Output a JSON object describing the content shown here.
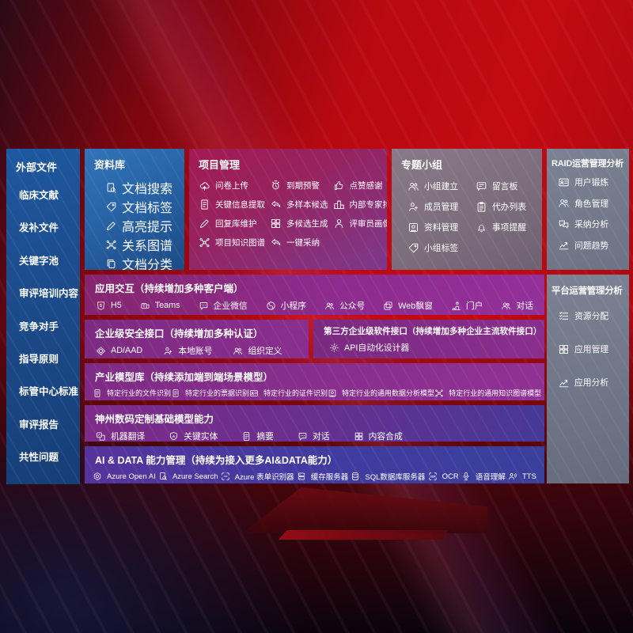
{
  "palette": {
    "background_red": "#b80911",
    "sidebar_blue": "#1c4c8c",
    "repository_blue": "#2763a6",
    "project_magenta": "#9c1d55",
    "topics_mauve": "#7b6c7c",
    "ops_gray_blue": "#6f7687",
    "row_purple": "#842b86",
    "row_indigo": "#3d3c96",
    "text": "#ffffff"
  },
  "sidebar": {
    "title": "外部文件",
    "items": [
      "临床文献",
      "发补文件",
      "关键字池",
      "审评培训内容",
      "竞争对手",
      "指导原则",
      "标管中心标准",
      "审评报告",
      "共性问题"
    ]
  },
  "repository": {
    "title": "资料库",
    "items": [
      {
        "label": "文档搜索",
        "icon": "doc-search-icon"
      },
      {
        "label": "文档标签",
        "icon": "doc-tag-icon"
      },
      {
        "label": "高亮提示",
        "icon": "highlight-icon"
      },
      {
        "label": "关系图谱",
        "icon": "relation-graph-icon"
      },
      {
        "label": "文档分类",
        "icon": "doc-classify-icon"
      }
    ]
  },
  "project_management": {
    "title": "项目管理",
    "items": [
      {
        "label": "问卷上传",
        "icon": "questionnaire-upload-icon"
      },
      {
        "label": "到期预警",
        "icon": "due-warning-icon"
      },
      {
        "label": "点赞感谢",
        "icon": "like-thanks-icon"
      },
      {
        "label": "关键信息提取",
        "icon": "key-info-extraction-icon"
      },
      {
        "label": "多样本候选",
        "icon": "multi-sample-candidate-icon"
      },
      {
        "label": "内部专家排名",
        "icon": "internal-expert-ranking-icon"
      },
      {
        "label": "回复库维护",
        "icon": "reply-library-icon"
      },
      {
        "label": "多候选生成",
        "icon": "multi-candidate-generation-icon"
      },
      {
        "label": "评审员画像",
        "icon": "reviewer-profile-icon"
      },
      {
        "label": "项目知识图谱",
        "icon": "project-knowledge-graph-icon"
      },
      {
        "label": "一键采纳",
        "icon": "one-click-adopt-icon"
      }
    ]
  },
  "topic_groups": {
    "title": "专题小组",
    "items": [
      {
        "label": "小组建立",
        "icon": "group-create-icon"
      },
      {
        "label": "留言板",
        "icon": "message-board-icon"
      },
      {
        "label": "成员管理",
        "icon": "member-management-icon"
      },
      {
        "label": "代办列表",
        "icon": "todo-list-icon"
      },
      {
        "label": "资料管理",
        "icon": "material-management-icon"
      },
      {
        "label": "事项提醒",
        "icon": "reminder-icon"
      },
      {
        "label": "小组标签",
        "icon": "group-tag-icon"
      }
    ]
  },
  "raid_ops": {
    "title": "RAID运营管理分析",
    "items": [
      {
        "label": "用户锻炼",
        "icon": "user-training-icon"
      },
      {
        "label": "角色管理",
        "icon": "role-management-icon"
      },
      {
        "label": "采纳分析",
        "icon": "adoption-analysis-icon"
      },
      {
        "label": "问题趋势",
        "icon": "issue-trend-icon"
      }
    ]
  },
  "platform_ops": {
    "title": "平台运营管理分析",
    "items": [
      {
        "label": "资源分配",
        "icon": "resource-allocation-icon"
      },
      {
        "label": "应用管理",
        "icon": "app-management-icon"
      },
      {
        "label": "应用分析",
        "icon": "app-analysis-icon"
      }
    ]
  },
  "app_interaction": {
    "title": "应用交互（持续增加多种客户端）",
    "items": [
      {
        "label": "H5",
        "icon": "h5-icon"
      },
      {
        "label": "Teams",
        "icon": "teams-icon"
      },
      {
        "label": "企业微信",
        "icon": "wecom-icon"
      },
      {
        "label": "小程序",
        "icon": "miniprogram-icon"
      },
      {
        "label": "公众号",
        "icon": "official-account-icon"
      },
      {
        "label": "Web飘窗",
        "icon": "web-popup-icon"
      },
      {
        "label": "门户",
        "icon": "portal-icon"
      },
      {
        "label": "对话",
        "icon": "dialog-icon"
      }
    ]
  },
  "security_interface": {
    "title": "企业级安全接口（持续增加多种认证）",
    "items": [
      {
        "label": "AD/AAD",
        "icon": "ad-aad-icon"
      },
      {
        "label": "本地账号",
        "icon": "local-account-icon"
      },
      {
        "label": "组织定义",
        "icon": "org-definition-icon"
      }
    ]
  },
  "third_party_interface": {
    "title": "第三方企业级软件接口（持续增加多种企业主流软件接口）",
    "items": [
      {
        "label": "API自动化设计器",
        "icon": "api-designer-icon"
      }
    ]
  },
  "industry_models": {
    "title": "产业模型库（持续添加端到端场景模型）",
    "items": [
      {
        "label": "特定行业的文件识别",
        "icon": "file-recognition-icon"
      },
      {
        "label": "特定行业的票据识别",
        "icon": "receipt-recognition-icon"
      },
      {
        "label": "特定行业的证件识别",
        "icon": "id-card-recognition-icon"
      },
      {
        "label": "特定行业的通用数据分析模型",
        "icon": "data-analysis-model-icon"
      },
      {
        "label": "特定行业的通用知识图谱模型",
        "icon": "knowledge-graph-model-icon"
      }
    ]
  },
  "custom_base_models": {
    "title": "神州数码定制基础模型能力",
    "items": [
      {
        "label": "机器翻译",
        "icon": "machine-translation-icon"
      },
      {
        "label": "关键实体",
        "icon": "key-entity-icon"
      },
      {
        "label": "摘要",
        "icon": "summary-icon"
      },
      {
        "label": "对话",
        "icon": "chat-icon"
      },
      {
        "label": "内容合成",
        "icon": "content-compose-icon"
      }
    ]
  },
  "ai_data_management": {
    "title": "AI & DATA 能力管理（持续为接入更多AI&DATA能力）",
    "items": [
      {
        "label": "Azure Open AI",
        "icon": "azure-openai-icon"
      },
      {
        "label": "Azure Search",
        "icon": "azure-search-icon"
      },
      {
        "label": "Azure 表单识别器",
        "icon": "azure-form-recognizer-icon"
      },
      {
        "label": "缓存服务器",
        "icon": "cache-server-icon"
      },
      {
        "label": "SQL数据库服务器",
        "icon": "sql-db-server-icon"
      },
      {
        "label": "OCR",
        "icon": "ocr-icon"
      },
      {
        "label": "语音理解",
        "icon": "speech-understanding-icon"
      },
      {
        "label": "TTS",
        "icon": "tts-icon"
      }
    ]
  }
}
